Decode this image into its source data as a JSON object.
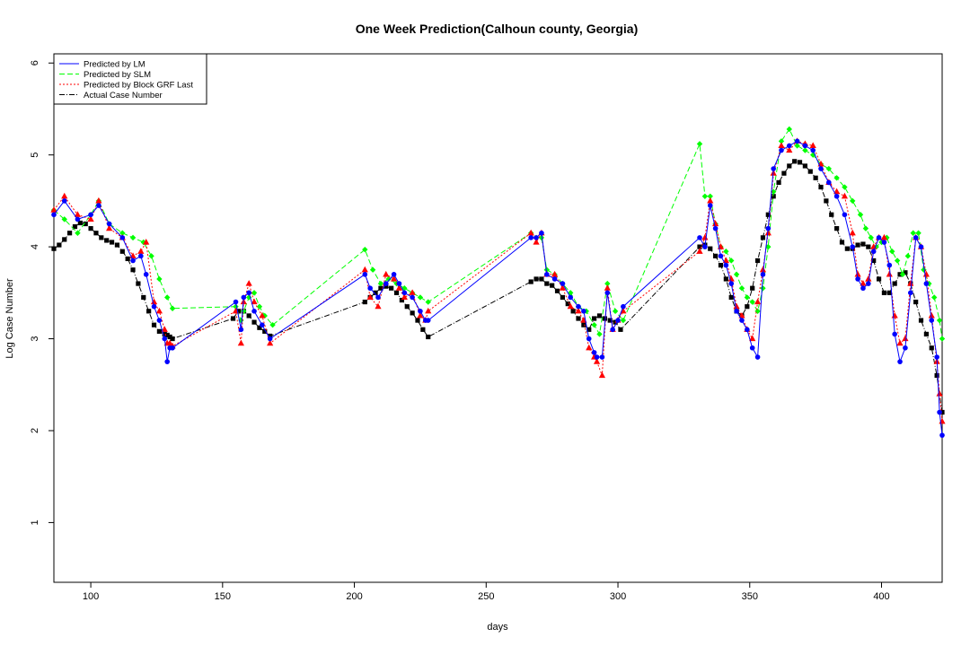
{
  "chart_data": {
    "type": "line",
    "title": "One Week Prediction(Calhoun county, Georgia)",
    "xlabel": "days",
    "ylabel": "Log Case Number",
    "xlim": [
      86,
      423
    ],
    "ylim": [
      0.35,
      6.1
    ],
    "x_ticks": [
      100,
      150,
      200,
      250,
      300,
      350,
      400
    ],
    "y_ticks": [
      1,
      2,
      3,
      4,
      5,
      6
    ],
    "grid": false,
    "legend_position": "top-left",
    "series": [
      {
        "name": "Predicted by LM",
        "color": "#0000ff",
        "line_style": "solid",
        "marker": "circle",
        "x": [
          86,
          90,
          95,
          100,
          103,
          107,
          112,
          116,
          119,
          121,
          124,
          126,
          128,
          129,
          130,
          131,
          155,
          157,
          158,
          160,
          162,
          165,
          168,
          204,
          206,
          209,
          212,
          215,
          217,
          219,
          222,
          225,
          227,
          228,
          267,
          269,
          271,
          273,
          276,
          279,
          282,
          285,
          287,
          289,
          291,
          292,
          294,
          296,
          298,
          300,
          302,
          331,
          333,
          335,
          337,
          339,
          341,
          343,
          345,
          347,
          349,
          351,
          353,
          355,
          357,
          359,
          362,
          365,
          368,
          371,
          374,
          377,
          380,
          383,
          386,
          389,
          391,
          393,
          395,
          397,
          399,
          401,
          403,
          405,
          407,
          409,
          411,
          413,
          415,
          417,
          419,
          421,
          422,
          423
        ],
        "values": [
          4.35,
          4.5,
          4.3,
          4.35,
          4.45,
          4.25,
          4.1,
          3.85,
          3.9,
          3.7,
          3.35,
          3.2,
          3.0,
          2.75,
          2.9,
          2.9,
          3.4,
          3.1,
          3.45,
          3.5,
          3.3,
          3.15,
          3.0,
          3.7,
          3.55,
          3.45,
          3.6,
          3.7,
          3.6,
          3.5,
          3.45,
          3.3,
          3.2,
          3.2,
          4.1,
          4.1,
          4.15,
          3.7,
          3.65,
          3.6,
          3.45,
          3.35,
          3.3,
          3.0,
          2.85,
          2.8,
          2.8,
          3.5,
          3.1,
          3.2,
          3.35,
          4.1,
          4.0,
          4.45,
          4.2,
          3.9,
          3.8,
          3.6,
          3.3,
          3.2,
          3.1,
          2.9,
          2.8,
          3.7,
          4.2,
          4.85,
          5.05,
          5.1,
          5.15,
          5.1,
          5.05,
          4.85,
          4.7,
          4.55,
          4.35,
          4.0,
          3.65,
          3.55,
          3.6,
          3.95,
          4.1,
          4.05,
          3.8,
          3.05,
          2.75,
          2.9,
          3.5,
          4.1,
          4.0,
          3.6,
          3.2,
          2.8,
          2.2,
          1.95
        ]
      },
      {
        "name": "Predicted by SLM",
        "color": "#00ff00",
        "line_style": "dashed",
        "marker": "diamond",
        "x": [
          86,
          90,
          95,
          100,
          103,
          107,
          112,
          116,
          120,
          123,
          126,
          129,
          131,
          155,
          157,
          158,
          160,
          162,
          164,
          166,
          169,
          204,
          207,
          210,
          213,
          216,
          219,
          222,
          225,
          228,
          267,
          269,
          271,
          273,
          276,
          279,
          282,
          285,
          288,
          291,
          293,
          296,
          299,
          302,
          331,
          333,
          335,
          337,
          339,
          341,
          343,
          345,
          347,
          349,
          351,
          353,
          355,
          357,
          359,
          362,
          365,
          368,
          371,
          374,
          377,
          380,
          383,
          386,
          389,
          392,
          394,
          396,
          398,
          400,
          402,
          404,
          406,
          408,
          410,
          412,
          414,
          416,
          418,
          420,
          422,
          423
        ],
        "values": [
          4.4,
          4.3,
          4.15,
          4.35,
          4.5,
          4.25,
          4.15,
          4.1,
          4.05,
          3.9,
          3.65,
          3.45,
          3.33,
          3.35,
          3.2,
          3.3,
          3.45,
          3.5,
          3.35,
          3.25,
          3.15,
          3.97,
          3.75,
          3.6,
          3.65,
          3.6,
          3.55,
          3.5,
          3.45,
          3.4,
          4.15,
          4.1,
          4.1,
          3.75,
          3.7,
          3.6,
          3.5,
          3.35,
          3.3,
          3.15,
          3.05,
          3.6,
          3.3,
          3.2,
          5.12,
          4.55,
          4.55,
          4.25,
          4.0,
          3.95,
          3.85,
          3.7,
          3.55,
          3.45,
          3.4,
          3.3,
          3.55,
          4.0,
          4.6,
          5.15,
          5.28,
          5.1,
          5.05,
          5.0,
          4.9,
          4.85,
          4.75,
          4.65,
          4.5,
          4.35,
          4.2,
          4.1,
          4.0,
          4.05,
          4.1,
          3.95,
          3.85,
          3.7,
          3.9,
          4.15,
          4.15,
          3.75,
          3.6,
          3.45,
          3.2,
          3.0
        ]
      },
      {
        "name": "Predicted by Block GRF Last",
        "color": "#ff0000",
        "line_style": "dotted",
        "marker": "triangle",
        "x": [
          86,
          90,
          95,
          100,
          103,
          107,
          112,
          116,
          119,
          121,
          124,
          126,
          128,
          129,
          130,
          131,
          155,
          157,
          158,
          160,
          162,
          165,
          168,
          204,
          206,
          209,
          212,
          215,
          217,
          219,
          222,
          225,
          227,
          228,
          267,
          269,
          271,
          273,
          276,
          279,
          282,
          285,
          287,
          289,
          291,
          292,
          294,
          296,
          298,
          300,
          302,
          331,
          333,
          335,
          337,
          339,
          341,
          343,
          345,
          347,
          349,
          351,
          353,
          355,
          357,
          359,
          362,
          365,
          368,
          371,
          374,
          377,
          380,
          383,
          386,
          389,
          391,
          393,
          395,
          397,
          399,
          401,
          403,
          405,
          407,
          409,
          411,
          413,
          415,
          417,
          419,
          421,
          422,
          423
        ],
        "values": [
          4.4,
          4.55,
          4.35,
          4.3,
          4.5,
          4.2,
          4.1,
          3.9,
          3.95,
          4.05,
          3.4,
          3.3,
          3.1,
          2.95,
          2.95,
          2.92,
          3.3,
          2.95,
          3.4,
          3.6,
          3.4,
          3.25,
          2.95,
          3.75,
          3.45,
          3.35,
          3.7,
          3.65,
          3.55,
          3.45,
          3.5,
          3.25,
          3.2,
          3.3,
          4.15,
          4.05,
          4.15,
          3.7,
          3.7,
          3.55,
          3.35,
          3.3,
          3.2,
          2.9,
          2.8,
          2.75,
          2.6,
          3.55,
          3.1,
          3.2,
          3.3,
          3.95,
          4.1,
          4.5,
          4.25,
          4.0,
          3.85,
          3.65,
          3.35,
          3.25,
          3.1,
          3.0,
          3.4,
          3.75,
          4.15,
          4.8,
          5.1,
          5.05,
          5.15,
          5.12,
          5.1,
          4.9,
          4.7,
          4.6,
          4.55,
          4.15,
          3.7,
          3.6,
          3.65,
          4.0,
          4.1,
          4.1,
          3.7,
          3.25,
          2.95,
          3.0,
          3.6,
          4.1,
          4.0,
          3.7,
          3.25,
          2.75,
          2.4,
          2.1
        ]
      },
      {
        "name": "Actual Case Number",
        "color": "#000000",
        "line_style": "dashdot",
        "marker": "square",
        "x": [
          86,
          88,
          90,
          92,
          94,
          96,
          98,
          100,
          102,
          104,
          106,
          108,
          110,
          112,
          114,
          116,
          118,
          120,
          122,
          124,
          126,
          128,
          129,
          130,
          131,
          154,
          156,
          158,
          160,
          162,
          164,
          166,
          168,
          204,
          206,
          208,
          210,
          212,
          214,
          216,
          218,
          220,
          222,
          224,
          226,
          228,
          267,
          269,
          271,
          273,
          275,
          277,
          279,
          281,
          283,
          285,
          287,
          289,
          291,
          293,
          295,
          297,
          299,
          301,
          331,
          333,
          335,
          337,
          339,
          341,
          343,
          345,
          347,
          349,
          351,
          353,
          355,
          357,
          359,
          361,
          363,
          365,
          367,
          369,
          371,
          373,
          375,
          377,
          379,
          381,
          383,
          385,
          387,
          389,
          391,
          393,
          395,
          397,
          399,
          401,
          403,
          405,
          407,
          409,
          411,
          413,
          415,
          417,
          419,
          421,
          423
        ],
        "values": [
          3.98,
          4.02,
          4.08,
          4.15,
          4.22,
          4.26,
          4.25,
          4.2,
          4.15,
          4.1,
          4.07,
          4.05,
          4.02,
          3.95,
          3.87,
          3.75,
          3.6,
          3.45,
          3.3,
          3.15,
          3.08,
          3.05,
          3.04,
          3.02,
          3.0,
          3.22,
          3.3,
          3.3,
          3.25,
          3.18,
          3.12,
          3.08,
          3.03,
          3.4,
          3.45,
          3.5,
          3.55,
          3.57,
          3.55,
          3.5,
          3.42,
          3.35,
          3.28,
          3.2,
          3.1,
          3.02,
          3.62,
          3.65,
          3.65,
          3.6,
          3.58,
          3.52,
          3.45,
          3.38,
          3.3,
          3.22,
          3.15,
          3.1,
          3.22,
          3.25,
          3.22,
          3.2,
          3.18,
          3.1,
          4.0,
          4.02,
          3.98,
          3.9,
          3.8,
          3.65,
          3.45,
          3.3,
          3.25,
          3.35,
          3.55,
          3.85,
          4.1,
          4.35,
          4.55,
          4.7,
          4.8,
          4.88,
          4.93,
          4.92,
          4.88,
          4.82,
          4.75,
          4.65,
          4.5,
          4.35,
          4.2,
          4.05,
          3.98,
          3.98,
          4.02,
          4.03,
          4.0,
          3.85,
          3.65,
          3.5,
          3.5,
          3.6,
          3.7,
          3.72,
          3.6,
          3.4,
          3.2,
          3.05,
          2.9,
          2.6,
          2.2
        ]
      }
    ]
  }
}
